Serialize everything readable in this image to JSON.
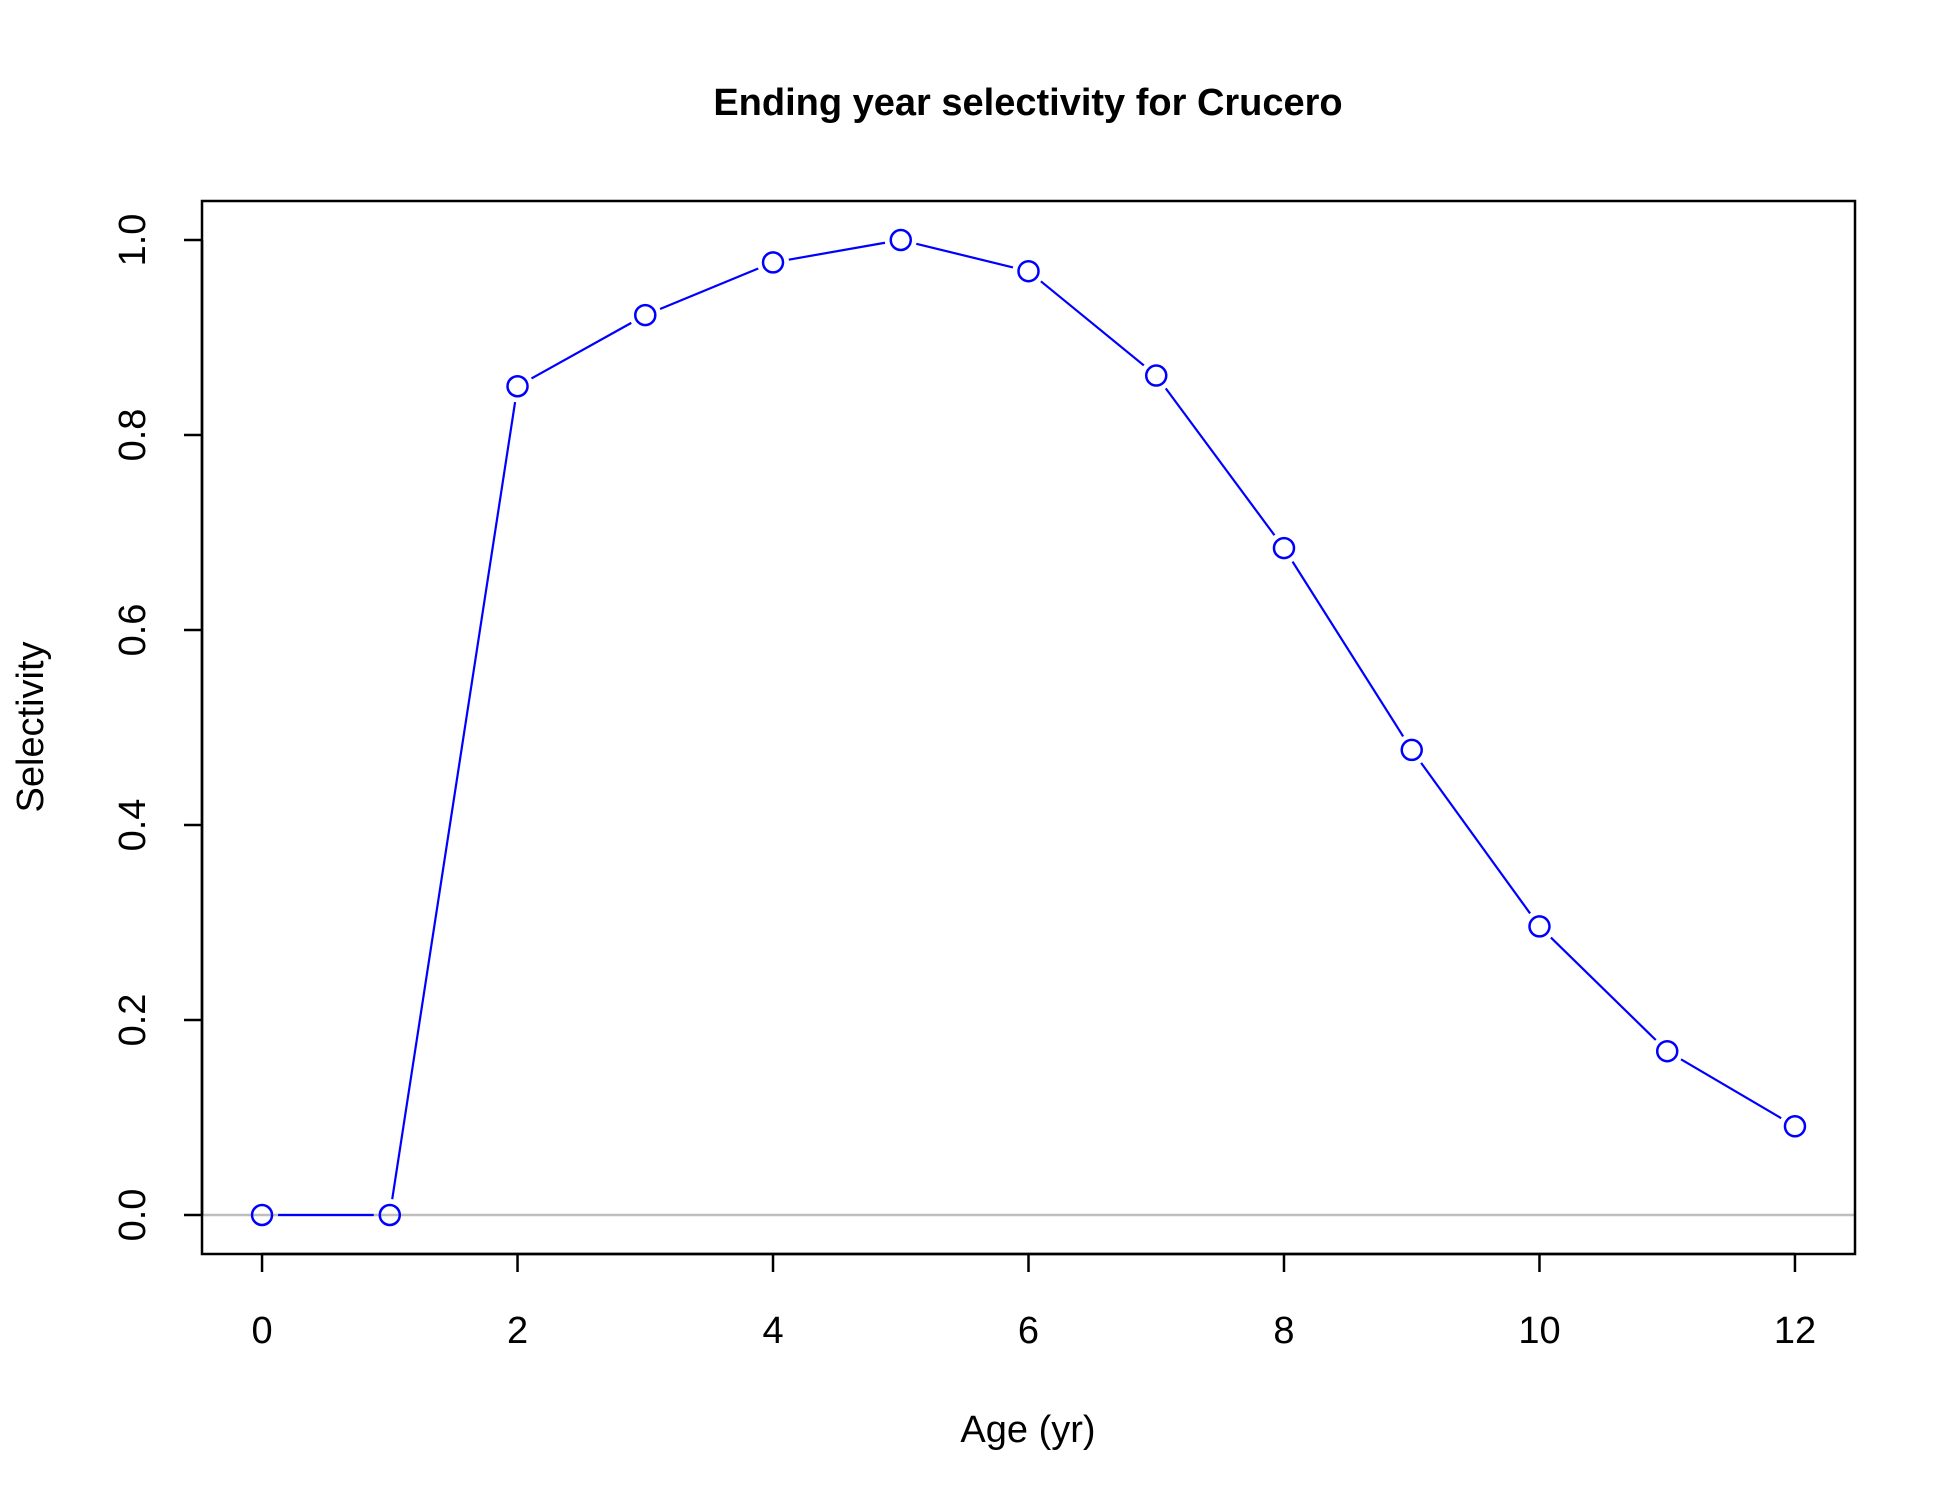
{
  "chart_data": {
    "type": "line",
    "title": "Ending year selectivity for Crucero",
    "xlabel": "Age (yr)",
    "ylabel": "Selectivity",
    "x": [
      0,
      1,
      2,
      3,
      4,
      5,
      6,
      7,
      8,
      9,
      10,
      11,
      12
    ],
    "series": [
      {
        "values": [
          0.0,
          0.0,
          0.85,
          0.923,
          0.977,
          1.0,
          0.968,
          0.861,
          0.684,
          0.477,
          0.296,
          0.168,
          0.091
        ],
        "color": "#0000ff",
        "marker": "open-circle"
      }
    ],
    "xlim": [
      -0.47,
      12.47
    ],
    "ylim": [
      -0.04,
      1.04
    ],
    "x_ticks": [
      0,
      2,
      4,
      6,
      8,
      10,
      12
    ],
    "x_tick_labels": [
      "0",
      "2",
      "4",
      "6",
      "8",
      "10",
      "12"
    ],
    "y_ticks": [
      0.0,
      0.2,
      0.4,
      0.6,
      0.8,
      1.0
    ],
    "y_tick_labels": [
      "0.0",
      "0.2",
      "0.4",
      "0.6",
      "0.8",
      "1.0"
    ],
    "reference_line": {
      "y": 0,
      "color": "#bebebe"
    },
    "grid": false,
    "legend": "none"
  }
}
